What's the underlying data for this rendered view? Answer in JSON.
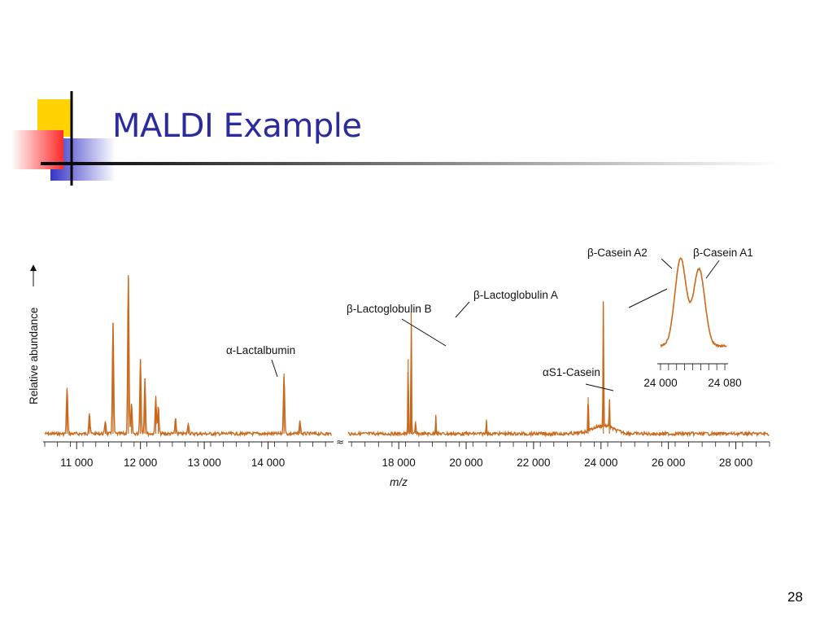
{
  "slide": {
    "title": "MALDI Example",
    "page_number": "28"
  },
  "colors": {
    "trace": "#c8691c",
    "title": "#2b2b9e",
    "deco_yellow": "#ffd200",
    "deco_blue": "#3434c8",
    "deco_red": "#ff2b2b"
  },
  "icons": [
    "slide-corner-decoration-icon",
    "axis-arrow-icon",
    "axis-break-icon"
  ],
  "chart_data": [
    {
      "type": "line",
      "xlabel": "m/z",
      "ylabel": "Relative abundance",
      "yscale": "relative (no numeric ticks)",
      "xlim": [
        10500,
        29000
      ],
      "axis_break": [
        15000,
        16500
      ],
      "ticks": [
        {
          "value": 11000,
          "label": "11 000"
        },
        {
          "value": 12000,
          "label": "12 000"
        },
        {
          "value": 13000,
          "label": "13 000"
        },
        {
          "value": 14000,
          "label": "14 000"
        },
        {
          "value": 18000,
          "label": "18 000"
        },
        {
          "value": 20000,
          "label": "20 000"
        },
        {
          "value": 22000,
          "label": "22 000"
        },
        {
          "value": 24000,
          "label": "24 000"
        },
        {
          "value": 26000,
          "label": "26 000"
        },
        {
          "value": 28000,
          "label": "28 000"
        }
      ],
      "peaks": [
        {
          "x": 10850,
          "y": 0.29
        },
        {
          "x": 11200,
          "y": 0.13
        },
        {
          "x": 11450,
          "y": 0.08
        },
        {
          "x": 11570,
          "y": 0.7
        },
        {
          "x": 11810,
          "y": 1.0
        },
        {
          "x": 11860,
          "y": 0.19
        },
        {
          "x": 12000,
          "y": 0.47
        },
        {
          "x": 12070,
          "y": 0.35
        },
        {
          "x": 12240,
          "y": 0.24
        },
        {
          "x": 12280,
          "y": 0.17
        },
        {
          "x": 12550,
          "y": 0.09
        },
        {
          "x": 12750,
          "y": 0.07
        },
        {
          "x": 14250,
          "y": 0.38
        },
        {
          "x": 14500,
          "y": 0.08
        },
        {
          "x": 18280,
          "y": 0.47
        },
        {
          "x": 18370,
          "y": 0.77
        },
        {
          "x": 18500,
          "y": 0.08
        },
        {
          "x": 19100,
          "y": 0.12
        },
        {
          "x": 20600,
          "y": 0.09
        },
        {
          "x": 23620,
          "y": 0.23
        },
        {
          "x": 24070,
          "y": 0.81
        },
        {
          "x": 24250,
          "y": 0.19
        }
      ],
      "annotations": [
        {
          "text": "α-Lactalbumin",
          "x": 14250
        },
        {
          "text": "β-Lactoglobulin B",
          "x": 18280
        },
        {
          "text": "β-Lactoglobulin A",
          "x": 18370
        },
        {
          "text": "αS1-Casein",
          "x": 23620
        }
      ]
    },
    {
      "type": "line",
      "title": "",
      "xlim": [
        24000,
        24080
      ],
      "ticks": [
        {
          "value": 24000,
          "label": "24 000"
        },
        {
          "value": 24080,
          "label": "24 080"
        }
      ],
      "peaks": [
        {
          "x": 24025,
          "y": 1.0
        },
        {
          "x": 24048,
          "y": 0.88
        }
      ],
      "annotations": [
        {
          "text": "β-Casein A2",
          "x": 24025
        },
        {
          "text": "β-Casein A1",
          "x": 24048
        }
      ]
    }
  ]
}
